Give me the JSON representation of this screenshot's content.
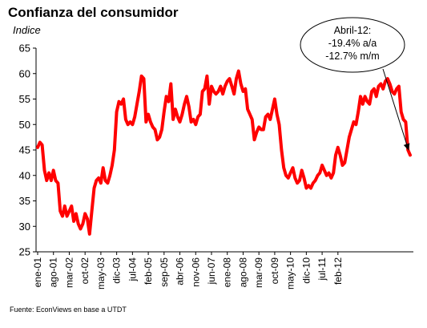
{
  "header": {
    "title": "Confianza del consumidor",
    "subtitle": "Indice",
    "source": "Fuente: EconViews en base a UTDT"
  },
  "annotation": {
    "lines": [
      "Abril-12:",
      "-19.4% a/a",
      "-12.7% m/m"
    ]
  },
  "colors": {
    "series": "#ff0000",
    "axis": "#000000",
    "grid": "#000000"
  },
  "chart_data": {
    "type": "line",
    "title": "Confianza del consumidor",
    "ylabel": "Indice",
    "xlabel": "",
    "ylim": [
      25,
      65
    ],
    "yticks": [
      25,
      30,
      35,
      40,
      45,
      50,
      55,
      60,
      65
    ],
    "grid": false,
    "legend": "none",
    "xtick_labels": [
      "ene-01",
      "ago-01",
      "mar-02",
      "oct-02",
      "may-03",
      "dic-03",
      "jul-04",
      "feb-05",
      "sep-05",
      "abr-06",
      "nov-06",
      "jun-07",
      "ene-08",
      "ago-08",
      "mar-09",
      "oct-09",
      "may-10",
      "dic-10",
      "jul-11",
      "feb-12"
    ],
    "series": [
      {
        "values": [
          45.5,
          46.5,
          46,
          41,
          39,
          40.5,
          39,
          41,
          39,
          38.5,
          33,
          32,
          34,
          32,
          33,
          34,
          31,
          32.5,
          30.5,
          29.5,
          30.5,
          32.5,
          31.5,
          28.5,
          33,
          37.5,
          39,
          39.5,
          38.5,
          41.5,
          39,
          38.5,
          40,
          42,
          45,
          52.5,
          54.5,
          54,
          55,
          51,
          50,
          50.5,
          50,
          51.5,
          54,
          56.5,
          59.5,
          59,
          50.5,
          52,
          50.5,
          49.5,
          49,
          47,
          47.5,
          49,
          52.5,
          55.5,
          54.5,
          58,
          51,
          53,
          51.5,
          50.5,
          52,
          54,
          55.5,
          53.5,
          50.5,
          51,
          50,
          51.5,
          52,
          56.5,
          57,
          59.5,
          54,
          57.5,
          56.5,
          56,
          56.5,
          57.5,
          56,
          57.5,
          58.5,
          59,
          57.5,
          56,
          59,
          60.5,
          58,
          56.5,
          57,
          53,
          52,
          51,
          47,
          48.5,
          49.5,
          49,
          49,
          51.5,
          52,
          51,
          53,
          55,
          52,
          50,
          45,
          41.5,
          40,
          39.5,
          40.5,
          41.5,
          39.5,
          38.5,
          39,
          41,
          39.5,
          37.5,
          38,
          37.5,
          38.5,
          39,
          40,
          40.5,
          42,
          41,
          40,
          40.5,
          39.5,
          40.5,
          44,
          45.5,
          44,
          42,
          42.5,
          45,
          47.5,
          49,
          50.5,
          50,
          52.5,
          55.5,
          54,
          55.5,
          54.5,
          54,
          56.5,
          57,
          55.5,
          57.5,
          58,
          57,
          58.5,
          59,
          58,
          56.5,
          56,
          57,
          57.5,
          52.5,
          51,
          50.5,
          45,
          44
        ]
      }
    ]
  }
}
